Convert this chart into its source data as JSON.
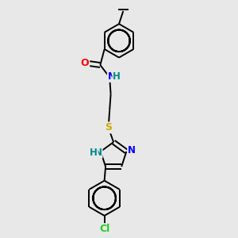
{
  "background_color": "#e8e8e8",
  "bond_color": "#000000",
  "atom_colors": {
    "O": "#ff0000",
    "N": "#0000ff",
    "S": "#ccaa00",
    "Cl": "#22cc22",
    "H_N": "#008888",
    "C": "#000000"
  },
  "figsize": [
    3.0,
    3.0
  ],
  "dpi": 100,
  "xlim": [
    0.25,
    0.75
  ],
  "ylim": [
    0.02,
    1.02
  ]
}
